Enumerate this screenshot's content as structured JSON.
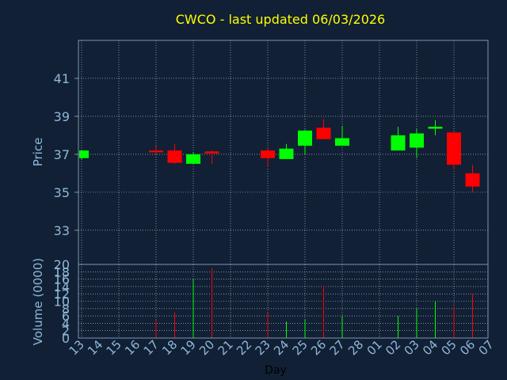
{
  "chart_data": {
    "type": "candlestick",
    "title": "CWCO - last updated 06/03/2026",
    "xlabel": "Day",
    "price_ylabel": "Price",
    "volume_ylabel": "Volume (0000)",
    "price_ylim": [
      31.2,
      43.0
    ],
    "price_ticks": [
      "33",
      "35",
      "37",
      "39",
      "41"
    ],
    "volume_ylim": [
      0,
      20
    ],
    "volume_ticks": [
      "0",
      "2",
      "4",
      "6",
      "8",
      "10",
      "12",
      "14",
      "16",
      "18",
      "20"
    ],
    "x_labels": [
      "13",
      "14",
      "15",
      "16",
      "17",
      "18",
      "19",
      "20",
      "21",
      "22",
      "23",
      "24",
      "25",
      "26",
      "27",
      "28",
      "01",
      "02",
      "03",
      "04",
      "05",
      "06",
      "07"
    ],
    "grid": true,
    "candles": [
      {
        "day": "13",
        "open": 36.8,
        "high": 37.2,
        "low": 36.75,
        "close": 37.2,
        "volume": 0
      },
      {
        "day": "17",
        "open": 37.15,
        "high": 37.45,
        "low": 37.0,
        "close": 37.1,
        "volume": 5
      },
      {
        "day": "18",
        "open": 37.2,
        "high": 37.55,
        "low": 36.5,
        "close": 36.55,
        "volume": 7
      },
      {
        "day": "19",
        "open": 36.5,
        "high": 37.1,
        "low": 36.5,
        "close": 37.0,
        "volume": 16
      },
      {
        "day": "20",
        "open": 37.15,
        "high": 37.2,
        "low": 36.5,
        "close": 37.05,
        "volume": 19
      },
      {
        "day": "23",
        "open": 37.2,
        "high": 37.35,
        "low": 36.35,
        "close": 36.8,
        "volume": 7
      },
      {
        "day": "24",
        "open": 36.75,
        "high": 37.55,
        "low": 36.75,
        "close": 37.3,
        "volume": 4.5
      },
      {
        "day": "25",
        "open": 37.45,
        "high": 38.3,
        "low": 37.0,
        "close": 38.25,
        "volume": 5
      },
      {
        "day": "26",
        "open": 38.4,
        "high": 38.85,
        "low": 37.8,
        "close": 37.8,
        "volume": 14
      },
      {
        "day": "27",
        "open": 37.45,
        "high": 38.5,
        "low": 37.45,
        "close": 37.85,
        "volume": 6
      },
      {
        "day": "02",
        "open": 37.2,
        "high": 38.45,
        "low": 37.2,
        "close": 38.0,
        "volume": 6
      },
      {
        "day": "03",
        "open": 37.35,
        "high": 38.35,
        "low": 36.8,
        "close": 38.1,
        "volume": 8
      },
      {
        "day": "04",
        "open": 38.35,
        "high": 38.8,
        "low": 38.0,
        "close": 38.45,
        "volume": 10
      },
      {
        "day": "05",
        "open": 38.15,
        "high": 38.15,
        "low": 36.2,
        "close": 36.45,
        "volume": 8.5
      },
      {
        "day": "06",
        "open": 36.0,
        "high": 36.45,
        "low": 35.0,
        "close": 35.3,
        "volume": 12
      }
    ],
    "colors": {
      "up": "#00ff00",
      "down": "#ff0000",
      "background": "#112035",
      "plot_border": "#7f95ad",
      "grid": "#c8d2dc",
      "tick_text": "#8fb8d8",
      "title": "#ffff00"
    }
  }
}
